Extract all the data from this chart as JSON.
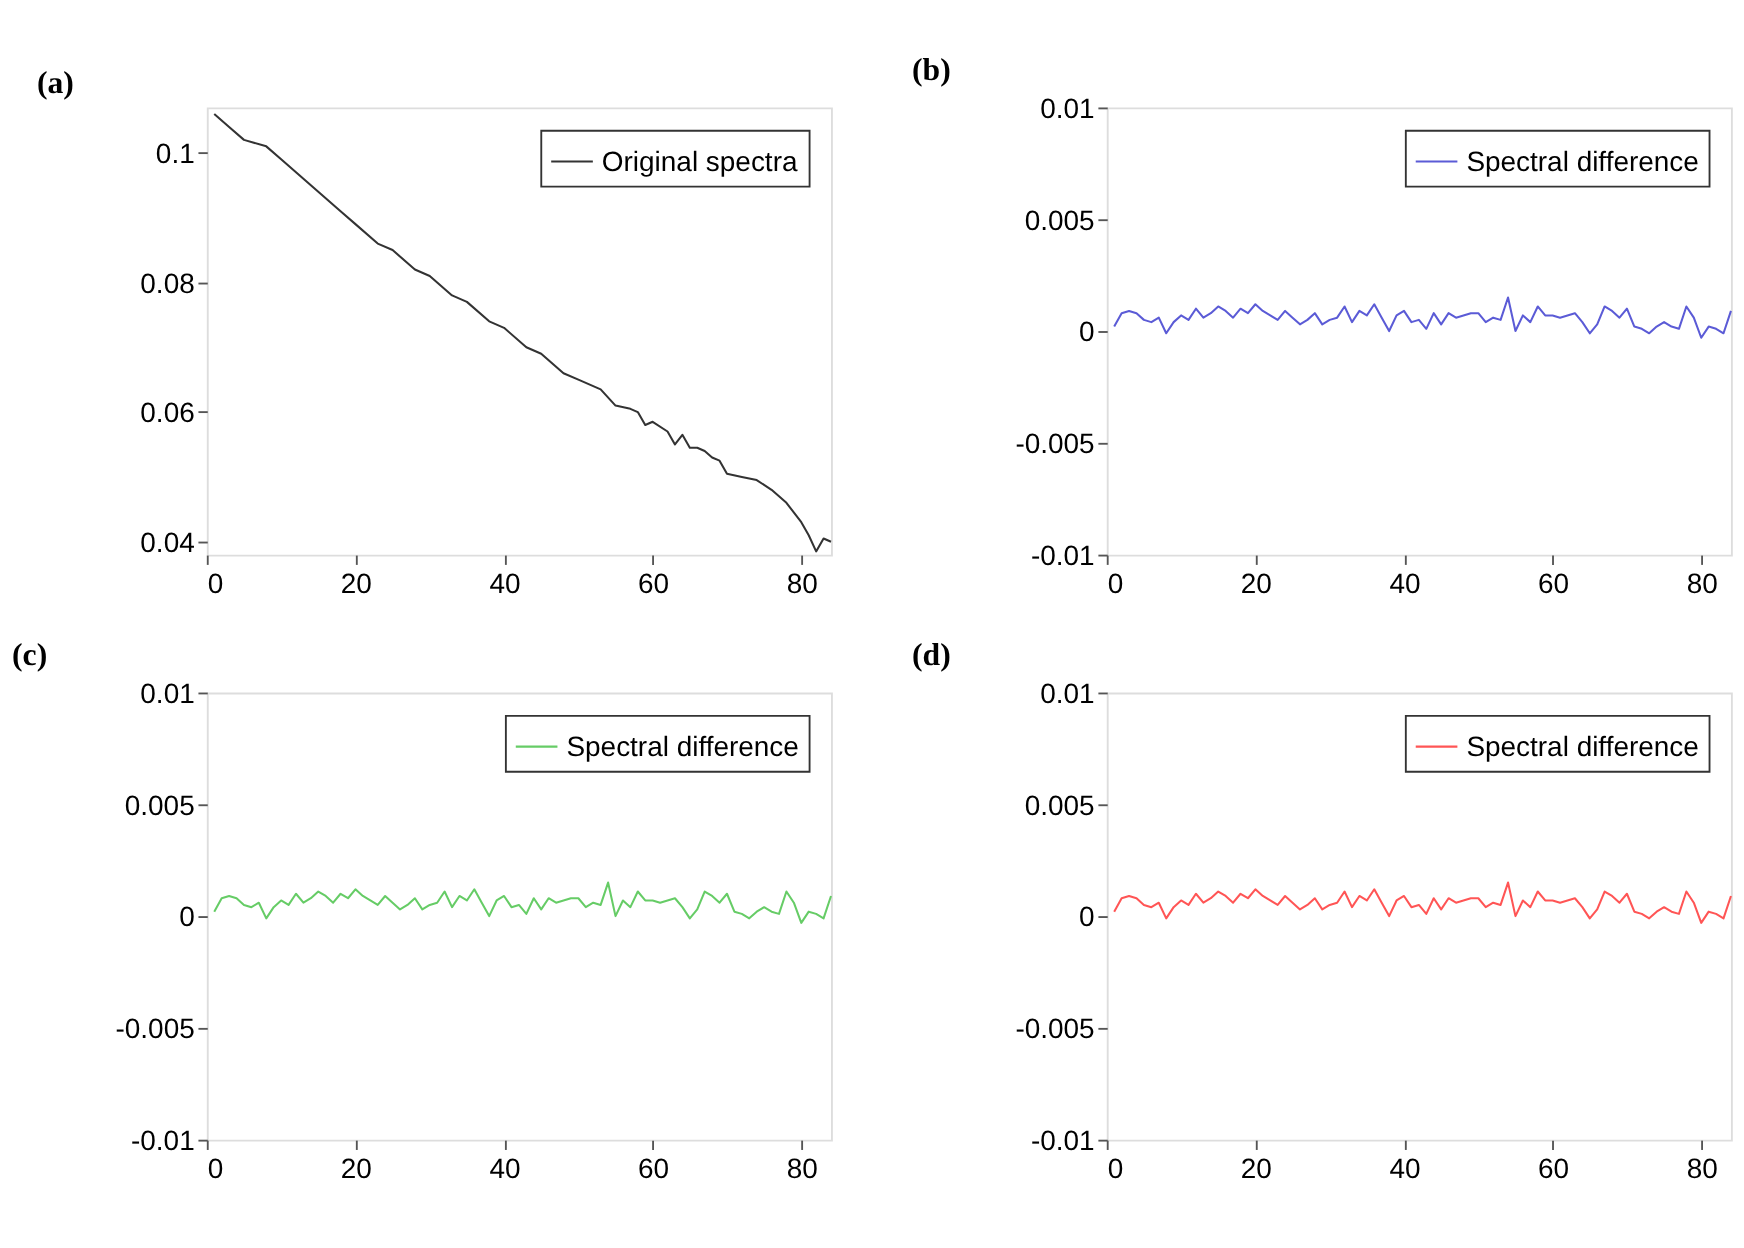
{
  "chart_data": [
    {
      "type": "line",
      "title": "(a)",
      "xlim": [
        0,
        84
      ],
      "xticks": [
        0,
        20,
        40,
        60,
        80
      ],
      "ylim": [
        0.038,
        0.107
      ],
      "yticks": [
        0.04,
        0.06,
        0.08,
        0.1
      ],
      "grid": false,
      "legend": "top right",
      "series": [
        {
          "name": "Original spectra",
          "color": "#333333",
          "x": [
            1,
            3,
            5,
            8,
            10,
            12,
            15,
            18,
            20,
            23,
            25,
            28,
            30,
            33,
            35,
            38,
            40,
            43,
            45,
            48,
            50,
            52,
            53,
            55,
            57,
            58,
            59,
            60,
            62,
            63,
            64,
            65,
            66,
            67,
            68,
            69,
            70,
            72,
            74,
            76,
            78,
            80,
            81,
            82,
            83,
            84
          ],
          "values": [
            0.106,
            0.104,
            0.102,
            0.101,
            0.099,
            0.097,
            0.094,
            0.091,
            0.089,
            0.086,
            0.085,
            0.082,
            0.081,
            0.078,
            0.077,
            0.074,
            0.073,
            0.07,
            0.069,
            0.066,
            0.065,
            0.064,
            0.0635,
            0.061,
            0.0605,
            0.06,
            0.058,
            0.0585,
            0.057,
            0.055,
            0.0565,
            0.0545,
            0.0545,
            0.054,
            0.053,
            0.0525,
            0.0505,
            0.05,
            0.0495,
            0.048,
            0.046,
            0.043,
            0.041,
            0.0385,
            0.0405,
            0.04
          ]
        }
      ]
    },
    {
      "type": "line",
      "title": "(b)",
      "xlim": [
        0,
        84
      ],
      "xticks": [
        0,
        20,
        40,
        60,
        80
      ],
      "ylim": [
        -0.01,
        0.01
      ],
      "yticks": [
        -0.01,
        -0.005,
        0,
        0.005,
        0.01
      ],
      "grid": false,
      "legend": "top right",
      "series": [
        {
          "name": "Spectral difference",
          "color": "#5b5bd6",
          "x": [
            1,
            2,
            3,
            4,
            5,
            6,
            7,
            8,
            9,
            10,
            11,
            12,
            13,
            14,
            15,
            16,
            17,
            18,
            19,
            20,
            21,
            22,
            23,
            24,
            25,
            26,
            27,
            28,
            29,
            30,
            31,
            32,
            33,
            34,
            35,
            36,
            37,
            38,
            39,
            40,
            41,
            42,
            43,
            44,
            45,
            46,
            47,
            48,
            49,
            50,
            51,
            52,
            53,
            54,
            55,
            56,
            57,
            58,
            59,
            60,
            61,
            62,
            63,
            64,
            65,
            66,
            67,
            68,
            69,
            70,
            71,
            72,
            73,
            74,
            75,
            76,
            77,
            78,
            79,
            80,
            81,
            82,
            83,
            84
          ],
          "values": [
            0.0002,
            0.0008,
            0.0009,
            0.0008,
            0.0005,
            0.0004,
            0.0006,
            -0.0001,
            0.0004,
            0.0007,
            0.0005,
            0.001,
            0.0006,
            0.0008,
            0.0011,
            0.0009,
            0.0006,
            0.001,
            0.0008,
            0.0012,
            0.0009,
            0.0007,
            0.0005,
            0.0009,
            0.0006,
            0.0003,
            0.0005,
            0.0008,
            0.0003,
            0.0005,
            0.0006,
            0.0011,
            0.0004,
            0.0009,
            0.0007,
            0.0012,
            0.0006,
            0.0,
            0.0007,
            0.0009,
            0.0004,
            0.0005,
            0.0001,
            0.0008,
            0.0003,
            0.0008,
            0.0006,
            0.0007,
            0.0008,
            0.0008,
            0.0004,
            0.0006,
            0.0005,
            0.0015,
            0.0,
            0.0007,
            0.0004,
            0.0011,
            0.0007,
            0.0007,
            0.0006,
            0.0007,
            0.0008,
            0.0004,
            -0.0001,
            0.0003,
            0.0011,
            0.0009,
            0.0006,
            0.001,
            0.0002,
            0.0001,
            -0.0001,
            0.0002,
            0.0004,
            0.0002,
            0.0001,
            0.0011,
            0.0006,
            -0.0003,
            0.0002,
            0.0001,
            -0.0001,
            0.0009
          ]
        }
      ]
    },
    {
      "type": "line",
      "title": "(c)",
      "xlim": [
        0,
        84
      ],
      "xticks": [
        0,
        20,
        40,
        60,
        80
      ],
      "ylim": [
        -0.01,
        0.01
      ],
      "yticks": [
        -0.01,
        -0.005,
        0,
        0.005,
        0.01
      ],
      "grid": false,
      "legend": "top right",
      "series": [
        {
          "name": "Spectral difference",
          "color": "#66cc66",
          "x": [
            1,
            2,
            3,
            4,
            5,
            6,
            7,
            8,
            9,
            10,
            11,
            12,
            13,
            14,
            15,
            16,
            17,
            18,
            19,
            20,
            21,
            22,
            23,
            24,
            25,
            26,
            27,
            28,
            29,
            30,
            31,
            32,
            33,
            34,
            35,
            36,
            37,
            38,
            39,
            40,
            41,
            42,
            43,
            44,
            45,
            46,
            47,
            48,
            49,
            50,
            51,
            52,
            53,
            54,
            55,
            56,
            57,
            58,
            59,
            60,
            61,
            62,
            63,
            64,
            65,
            66,
            67,
            68,
            69,
            70,
            71,
            72,
            73,
            74,
            75,
            76,
            77,
            78,
            79,
            80,
            81,
            82,
            83,
            84
          ],
          "values": [
            0.0002,
            0.0008,
            0.0009,
            0.0008,
            0.0005,
            0.0004,
            0.0006,
            -0.0001,
            0.0004,
            0.0007,
            0.0005,
            0.001,
            0.0006,
            0.0008,
            0.0011,
            0.0009,
            0.0006,
            0.001,
            0.0008,
            0.0012,
            0.0009,
            0.0007,
            0.0005,
            0.0009,
            0.0006,
            0.0003,
            0.0005,
            0.0008,
            0.0003,
            0.0005,
            0.0006,
            0.0011,
            0.0004,
            0.0009,
            0.0007,
            0.0012,
            0.0006,
            0.0,
            0.0007,
            0.0009,
            0.0004,
            0.0005,
            0.0001,
            0.0008,
            0.0003,
            0.0008,
            0.0006,
            0.0007,
            0.0008,
            0.0008,
            0.0004,
            0.0006,
            0.0005,
            0.0015,
            0.0,
            0.0007,
            0.0004,
            0.0011,
            0.0007,
            0.0007,
            0.0006,
            0.0007,
            0.0008,
            0.0004,
            -0.0001,
            0.0003,
            0.0011,
            0.0009,
            0.0006,
            0.001,
            0.0002,
            0.0001,
            -0.0001,
            0.0002,
            0.0004,
            0.0002,
            0.0001,
            0.0011,
            0.0006,
            -0.0003,
            0.0002,
            0.0001,
            -0.0001,
            0.0009
          ]
        }
      ]
    },
    {
      "type": "line",
      "title": "(d)",
      "xlim": [
        0,
        84
      ],
      "xticks": [
        0,
        20,
        40,
        60,
        80
      ],
      "ylim": [
        -0.01,
        0.01
      ],
      "yticks": [
        -0.01,
        -0.005,
        0,
        0.005,
        0.01
      ],
      "grid": false,
      "legend": "top right",
      "series": [
        {
          "name": "Spectral difference",
          "color": "#ff5555",
          "x": [
            1,
            2,
            3,
            4,
            5,
            6,
            7,
            8,
            9,
            10,
            11,
            12,
            13,
            14,
            15,
            16,
            17,
            18,
            19,
            20,
            21,
            22,
            23,
            24,
            25,
            26,
            27,
            28,
            29,
            30,
            31,
            32,
            33,
            34,
            35,
            36,
            37,
            38,
            39,
            40,
            41,
            42,
            43,
            44,
            45,
            46,
            47,
            48,
            49,
            50,
            51,
            52,
            53,
            54,
            55,
            56,
            57,
            58,
            59,
            60,
            61,
            62,
            63,
            64,
            65,
            66,
            67,
            68,
            69,
            70,
            71,
            72,
            73,
            74,
            75,
            76,
            77,
            78,
            79,
            80,
            81,
            82,
            83,
            84
          ],
          "values": [
            0.0002,
            0.0008,
            0.0009,
            0.0008,
            0.0005,
            0.0004,
            0.0006,
            -0.0001,
            0.0004,
            0.0007,
            0.0005,
            0.001,
            0.0006,
            0.0008,
            0.0011,
            0.0009,
            0.0006,
            0.001,
            0.0008,
            0.0012,
            0.0009,
            0.0007,
            0.0005,
            0.0009,
            0.0006,
            0.0003,
            0.0005,
            0.0008,
            0.0003,
            0.0005,
            0.0006,
            0.0011,
            0.0004,
            0.0009,
            0.0007,
            0.0012,
            0.0006,
            0.0,
            0.0007,
            0.0009,
            0.0004,
            0.0005,
            0.0001,
            0.0008,
            0.0003,
            0.0008,
            0.0006,
            0.0007,
            0.0008,
            0.0008,
            0.0004,
            0.0006,
            0.0005,
            0.0015,
            0.0,
            0.0007,
            0.0004,
            0.0011,
            0.0007,
            0.0007,
            0.0006,
            0.0007,
            0.0008,
            0.0004,
            -0.0001,
            0.0003,
            0.0011,
            0.0009,
            0.0006,
            0.001,
            0.0002,
            0.0001,
            -0.0001,
            0.0002,
            0.0004,
            0.0002,
            0.0001,
            0.0011,
            0.0006,
            -0.0003,
            0.0002,
            0.0001,
            -0.0001,
            0.0009
          ]
        }
      ]
    }
  ]
}
